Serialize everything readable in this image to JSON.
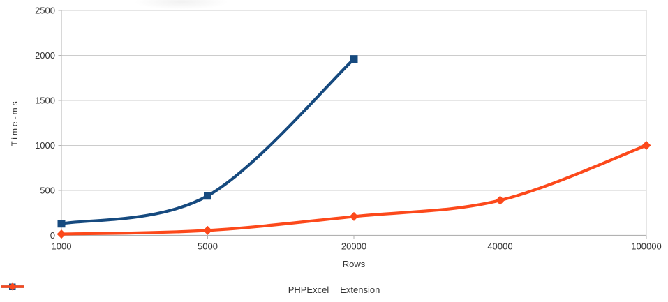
{
  "chart_data": {
    "type": "line",
    "title": "",
    "xlabel": "Rows",
    "ylabel": "Time-ms",
    "categories": [
      "1000",
      "5000",
      "20000",
      "40000",
      "100000"
    ],
    "series": [
      {
        "name": "PHPExcel",
        "color": "#164A7F",
        "marker": "square",
        "values": [
          130,
          440,
          1960,
          null,
          null
        ]
      },
      {
        "name": "Extension",
        "color": "#FC491B",
        "marker": "diamond",
        "values": [
          15,
          55,
          210,
          390,
          1000
        ]
      }
    ],
    "ylim": [
      0,
      2500
    ],
    "yticks": [
      0,
      500,
      1000,
      1500,
      2000,
      2500
    ],
    "grid": true,
    "legend_position": "bottom"
  },
  "colors": {
    "grid": "#cccccc",
    "axis": "#b2b2b2",
    "text": "#333333",
    "background": "#ffffff"
  }
}
